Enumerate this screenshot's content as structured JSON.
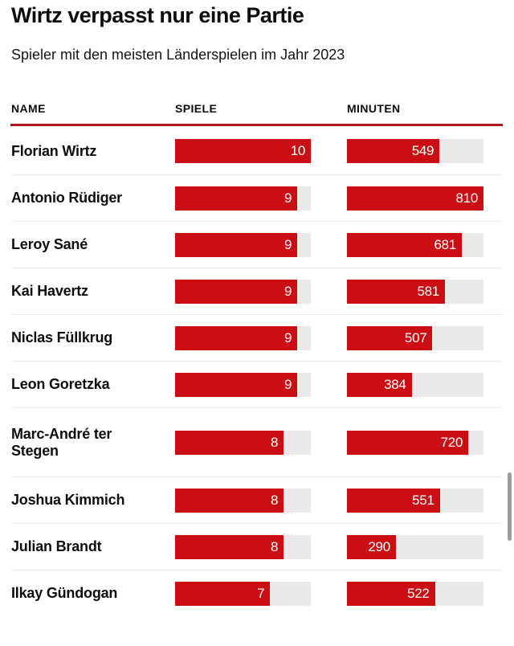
{
  "chart_data": {
    "type": "bar",
    "title": "Wirtz verpasst nur eine Partie",
    "subtitle": "Spieler mit den meisten Länderspielen im Jahr 2023",
    "columns": [
      "NAME",
      "SPIELE",
      "MINUTEN"
    ],
    "axes": {
      "spiele_max": 10,
      "minuten_max": 810
    },
    "rows": [
      {
        "name": "Florian Wirtz",
        "spiele": 10,
        "minuten": 549
      },
      {
        "name": "Antonio Rüdiger",
        "spiele": 9,
        "minuten": 810
      },
      {
        "name": "Leroy Sané",
        "spiele": 9,
        "minuten": 681
      },
      {
        "name": "Kai Havertz",
        "spiele": 9,
        "minuten": 581
      },
      {
        "name": "Niclas Füllkrug",
        "spiele": 9,
        "minuten": 507
      },
      {
        "name": "Leon Goretzka",
        "spiele": 9,
        "minuten": 384
      },
      {
        "name": "Marc-André ter Stegen",
        "spiele": 8,
        "minuten": 720
      },
      {
        "name": "Joshua Kimmich",
        "spiele": 8,
        "minuten": 551
      },
      {
        "name": "Julian Brandt",
        "spiele": 8,
        "minuten": 290
      },
      {
        "name": "Ilkay Gündogan",
        "spiele": 7,
        "minuten": 522
      }
    ],
    "legend": "none",
    "grid": "off",
    "bar_labels": "inside-right-white"
  },
  "colors": {
    "bar_red": "#cb0e14",
    "track_gray": "#e9e9e9",
    "rule_red": "#b0151b",
    "divider_gray": "#ececec",
    "scrollbar_gray": "#9c9c9c"
  }
}
